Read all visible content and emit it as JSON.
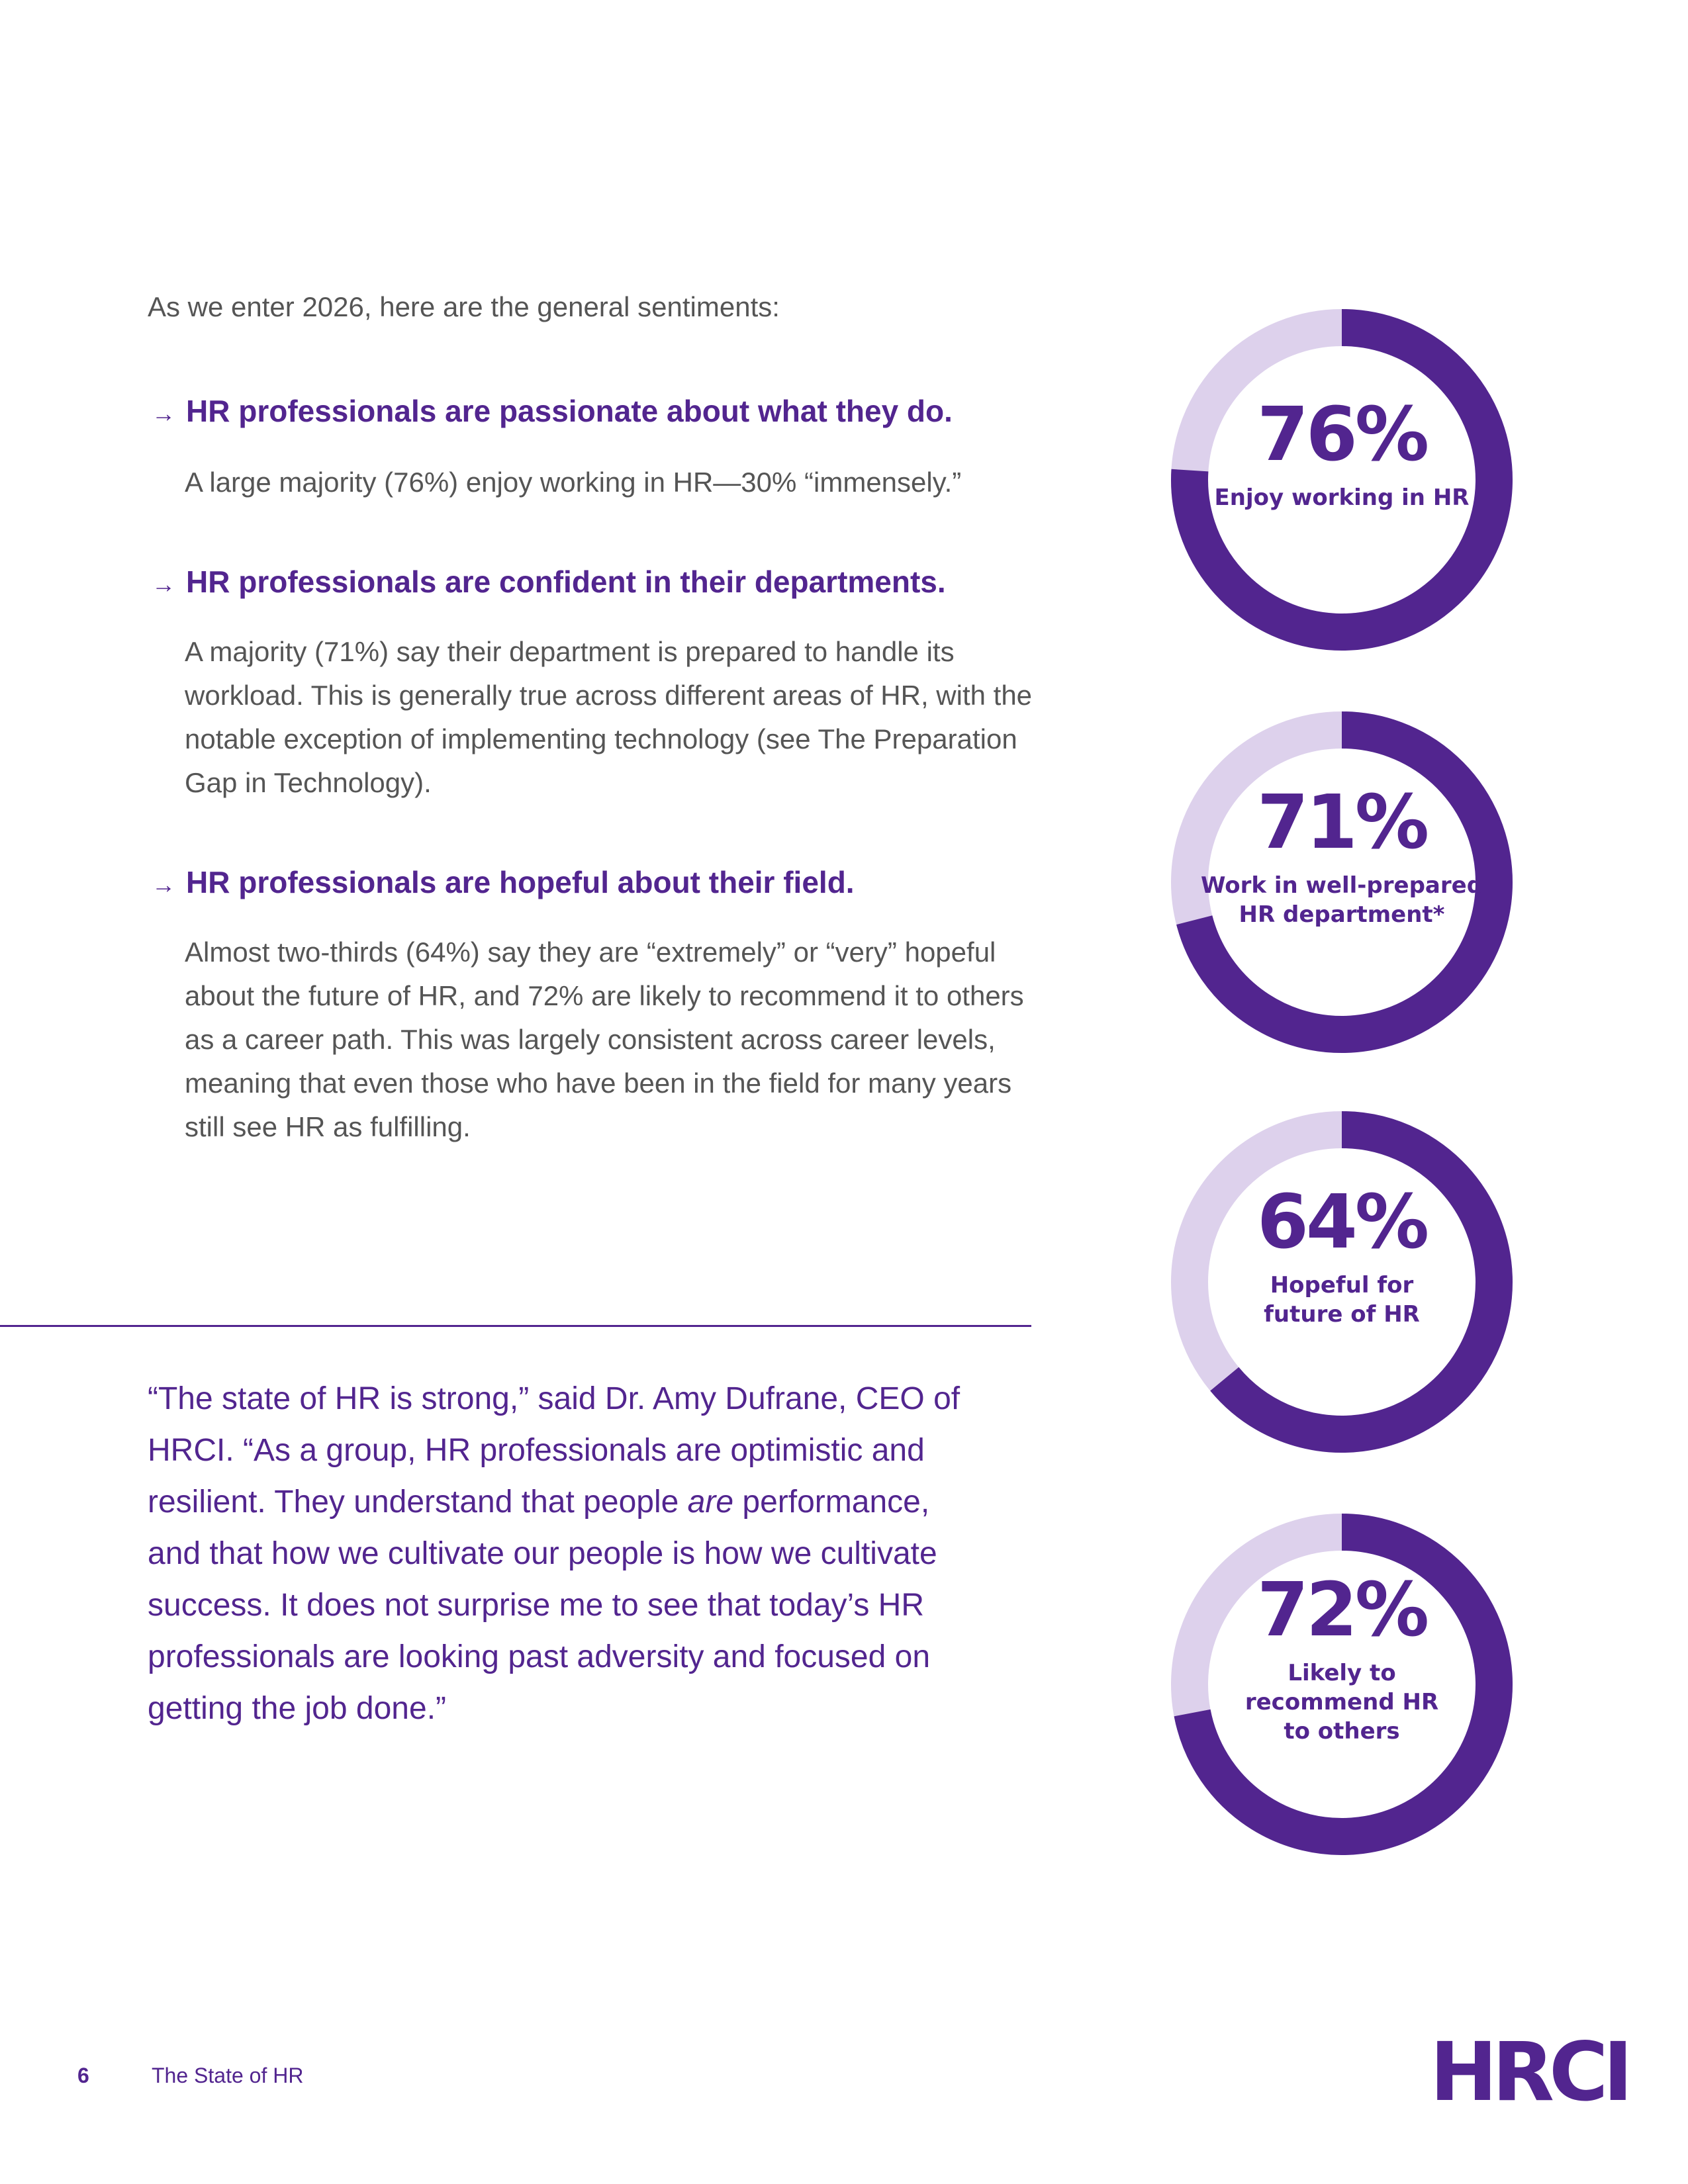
{
  "intro": "As we enter 2026, here are the general sentiments:",
  "sections": [
    {
      "heading": "HR professionals are passionate about what they do.",
      "body": "A large majority (76%) enjoy working in HR—30% “immensely.”"
    },
    {
      "heading": "HR professionals are confident in their departments.",
      "body": "A majority (71%) say their department is prepared to handle its workload. This is generally true across different areas of HR, with the notable exception of implementing technology (see The Preparation Gap in Technology)."
    },
    {
      "heading": "HR professionals are hopeful about their field.",
      "body": "Almost two-thirds (64%) say they are “extremely” or “very” hopeful about the future of HR, and 72% are likely to recommend it to others as a career path. This was largely consistent across career levels, meaning that even those who have been in the field for many years still see HR as fulfilling."
    }
  ],
  "quote": [
    "“The state of HR is strong,” said Dr. Amy Dufrane, CEO of HRCI. “As a group, HR professionals are optimistic and resilient. They understand that people ",
    "are",
    " performance, and that how we cultivate our people is how we cultivate success. It does not surprise me to see that today’s HR professionals are looking past adversity and focused on getting the job done.”"
  ],
  "footer": {
    "page": "6",
    "title": "The State of HR",
    "logo": "HRCI"
  },
  "chart_data": [
    {
      "type": "donut",
      "title": [
        "Enjoy working in HR"
      ],
      "values": [
        76
      ],
      "value_labels": [
        "76%"
      ],
      "color": "#52258f",
      "rest_color": "#ddd1ec"
    },
    {
      "type": "donut",
      "title": [
        "Work in well-prepared",
        "HR department*"
      ],
      "values": [
        71
      ],
      "value_labels": [
        "71%"
      ],
      "color": "#52258f",
      "rest_color": "#ddd1ec"
    },
    {
      "type": "donut",
      "title": [
        "Hopeful for",
        "future of HR"
      ],
      "values": [
        64
      ],
      "value_labels": [
        "64%"
      ],
      "color": "#52258f",
      "rest_color": "#ddd1ec"
    },
    {
      "type": "donut",
      "title": [
        "Likely to",
        "recommend HR",
        "to others"
      ],
      "values": [
        72
      ],
      "value_labels": [
        "72%"
      ],
      "color": "#52258f",
      "rest_color": "#ddd1ec"
    }
  ]
}
